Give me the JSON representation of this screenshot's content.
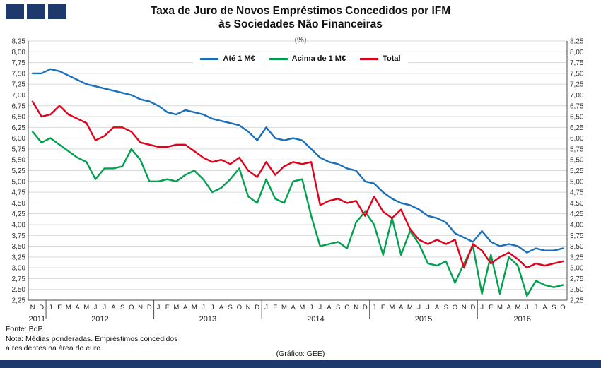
{
  "header": {
    "logo_squares": 3
  },
  "colors": {
    "logo": "#1e3a6d",
    "bottom_bar": "#1e3a6d",
    "grid": "#d9d9d9",
    "axis": "#4d4d4d",
    "tick_text": "#333333"
  },
  "chart_data": {
    "type": "line",
    "title": "Taxa de Juro de Novos Empréstimos Concedidos por IFM às Sociedades Não Financeiras",
    "title_line1": "Taxa de Juro de Novos Empréstimos Concedidos por IFM",
    "title_line2": "às Sociedades Não Financeiras",
    "subtitle": "(%)",
    "xlabel": "",
    "ylabel": "",
    "ylim": [
      2.25,
      8.25
    ],
    "ytick_step": 0.25,
    "grid": true,
    "legend_position": "top-center",
    "ytick_labels": [
      "8,25",
      "8,00",
      "7,75",
      "7,50",
      "7,25",
      "7,00",
      "6,75",
      "6,50",
      "6,25",
      "6,00",
      "5,75",
      "5,50",
      "5,25",
      "5,00",
      "4,75",
      "4,50",
      "4,25",
      "4,00",
      "3,75",
      "3,50",
      "3,25",
      "3,00",
      "2,75",
      "2,50",
      "2,25"
    ],
    "x_months": [
      "N",
      "D",
      "J",
      "F",
      "M",
      "A",
      "M",
      "J",
      "J",
      "A",
      "S",
      "O",
      "N",
      "D",
      "J",
      "F",
      "M",
      "A",
      "M",
      "J",
      "J",
      "A",
      "S",
      "O",
      "N",
      "D",
      "J",
      "F",
      "M",
      "A",
      "M",
      "J",
      "J",
      "A",
      "S",
      "O",
      "N",
      "D",
      "J",
      "F",
      "M",
      "A",
      "M",
      "J",
      "J",
      "A",
      "S",
      "O",
      "N",
      "D",
      "J",
      "F",
      "M",
      "A",
      "M",
      "J",
      "J",
      "A",
      "S",
      "O"
    ],
    "years": [
      {
        "label": "2011",
        "start": 0,
        "end": 1
      },
      {
        "label": "2012",
        "start": 2,
        "end": 13
      },
      {
        "label": "2013",
        "start": 14,
        "end": 25
      },
      {
        "label": "2014",
        "start": 26,
        "end": 37
      },
      {
        "label": "2015",
        "start": 38,
        "end": 49
      },
      {
        "label": "2016",
        "start": 50,
        "end": 59
      }
    ],
    "series": [
      {
        "name": "Até 1 M€",
        "color": "#1a6fba",
        "values": [
          7.5,
          7.5,
          7.6,
          7.55,
          7.45,
          7.35,
          7.25,
          7.2,
          7.15,
          7.1,
          7.05,
          7.0,
          6.9,
          6.85,
          6.75,
          6.6,
          6.55,
          6.65,
          6.6,
          6.55,
          6.45,
          6.4,
          6.35,
          6.3,
          6.15,
          5.95,
          6.25,
          6.0,
          5.95,
          6.0,
          5.95,
          5.75,
          5.55,
          5.45,
          5.4,
          5.3,
          5.25,
          5.0,
          4.95,
          4.75,
          4.6,
          4.5,
          4.45,
          4.35,
          4.2,
          4.15,
          4.05,
          3.8,
          3.7,
          3.6,
          3.85,
          3.6,
          3.5,
          3.55,
          3.5,
          3.35,
          3.45,
          3.4,
          3.4,
          3.45
        ]
      },
      {
        "name": "Acima de 1 M€",
        "color": "#00a14e",
        "values": [
          6.15,
          5.9,
          6.0,
          5.85,
          5.7,
          5.55,
          5.45,
          5.05,
          5.3,
          5.3,
          5.35,
          5.75,
          5.5,
          5.0,
          5.0,
          5.05,
          5.0,
          5.15,
          5.25,
          5.05,
          4.75,
          4.85,
          5.05,
          5.3,
          4.65,
          4.5,
          5.05,
          4.6,
          4.5,
          5.0,
          5.05,
          4.2,
          3.5,
          3.55,
          3.6,
          3.45,
          4.05,
          4.3,
          4.0,
          3.3,
          4.15,
          3.3,
          3.85,
          3.55,
          3.1,
          3.05,
          3.15,
          2.65,
          3.1,
          3.5,
          2.4,
          3.3,
          2.4,
          3.25,
          3.05,
          2.35,
          2.7,
          2.6,
          2.55,
          2.6
        ]
      },
      {
        "name": "Total",
        "color": "#e2001a",
        "values": [
          6.85,
          6.5,
          6.55,
          6.75,
          6.55,
          6.45,
          6.35,
          5.95,
          6.05,
          6.25,
          6.25,
          6.15,
          5.9,
          5.85,
          5.8,
          5.8,
          5.85,
          5.85,
          5.7,
          5.55,
          5.45,
          5.5,
          5.4,
          5.55,
          5.25,
          5.1,
          5.45,
          5.15,
          5.35,
          5.45,
          5.4,
          5.45,
          4.45,
          4.55,
          4.6,
          4.5,
          4.55,
          4.2,
          4.65,
          4.3,
          4.15,
          4.35,
          3.9,
          3.65,
          3.55,
          3.65,
          3.55,
          3.65,
          3.0,
          3.55,
          3.4,
          3.1,
          3.25,
          3.35,
          3.2,
          3.0,
          3.1,
          3.05,
          3.1,
          3.15
        ]
      }
    ]
  },
  "footer": {
    "fonte": "Fonte: BdP",
    "nota_line1": "Nota: Médias ponderadas. Empréstimos concedidos",
    "nota_line2": "a residentes na àrea do euro.",
    "credit": "(Gráfico: GEE)"
  }
}
